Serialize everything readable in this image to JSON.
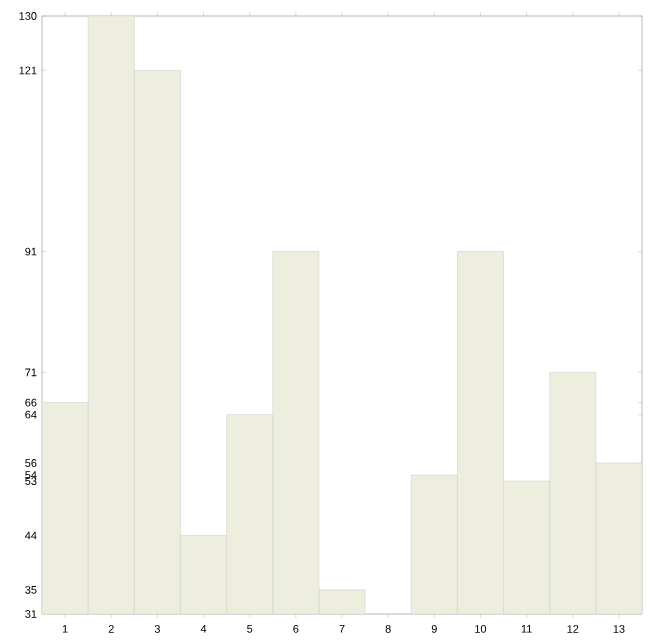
{
  "chart_data": {
    "type": "bar",
    "categories": [
      "1",
      "2",
      "3",
      "4",
      "5",
      "6",
      "7",
      "8",
      "9",
      "10",
      "11",
      "12",
      "13"
    ],
    "values": [
      66,
      130,
      121,
      44,
      64,
      91,
      35,
      31,
      54,
      91,
      53,
      71,
      56
    ],
    "color": "#eeeedf",
    "ylim": [
      31,
      130
    ],
    "yticks": [
      31,
      35,
      44,
      53,
      54,
      56,
      64,
      66,
      71,
      91,
      121,
      130
    ],
    "grid": false
  }
}
